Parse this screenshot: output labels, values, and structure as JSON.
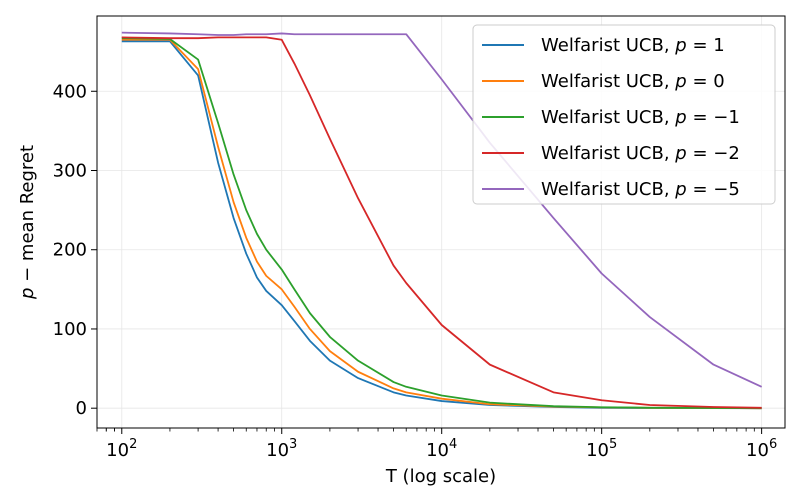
{
  "chart_data": {
    "type": "line",
    "xlabel": "T (log scale)",
    "ylabel": "p − mean Regret",
    "xscale": "log",
    "xlim": [
      70,
      1400000
    ],
    "ylim": [
      -25,
      495
    ],
    "grid": true,
    "legend_position": "top-right",
    "x_ticks": [
      {
        "value": 100,
        "base": "10",
        "exp": "2"
      },
      {
        "value": 1000,
        "base": "10",
        "exp": "3"
      },
      {
        "value": 10000,
        "base": "10",
        "exp": "4"
      },
      {
        "value": 100000,
        "base": "10",
        "exp": "5"
      },
      {
        "value": 1000000,
        "base": "10",
        "exp": "6"
      }
    ],
    "y_ticks": [
      0,
      100,
      200,
      300,
      400
    ],
    "x": [
      100,
      200,
      300,
      400,
      500,
      600,
      700,
      800,
      1000,
      1200,
      1500,
      2000,
      3000,
      5000,
      6000,
      10000,
      20000,
      50000,
      100000,
      200000,
      500000,
      1000000
    ],
    "series": [
      {
        "name_prefix": "Welfarist UCB, ",
        "name_var": "p",
        "name_rhs": " = 1",
        "color": "#1f77b4",
        "values": [
          463,
          463,
          420,
          310,
          240,
          195,
          165,
          148,
          130,
          110,
          85,
          60,
          38,
          20,
          16,
          9,
          4,
          1.5,
          0.5,
          0.2,
          0.1,
          0
        ]
      },
      {
        "name_prefix": "Welfarist UCB, ",
        "name_var": "p",
        "name_rhs": " = 0",
        "color": "#ff7f0e",
        "values": [
          465,
          465,
          428,
          330,
          260,
          215,
          185,
          167,
          150,
          128,
          100,
          72,
          46,
          25,
          20,
          12,
          5,
          2,
          1,
          0.5,
          0.2,
          0
        ]
      },
      {
        "name_prefix": "Welfarist UCB, ",
        "name_var": "p",
        "name_rhs": " = −1",
        "color": "#2ca02c",
        "values": [
          467,
          466,
          440,
          360,
          295,
          250,
          220,
          200,
          175,
          150,
          120,
          90,
          60,
          33,
          27,
          16,
          7,
          2.5,
          1.2,
          0.6,
          0.3,
          0
        ]
      },
      {
        "name_prefix": "Welfarist UCB, ",
        "name_var": "p",
        "name_rhs": " = −2",
        "color": "#d62728",
        "values": [
          468,
          467,
          467,
          468,
          468,
          468,
          468,
          468,
          465,
          435,
          395,
          340,
          265,
          180,
          158,
          105,
          55,
          20,
          10,
          4,
          1.5,
          0.5
        ]
      },
      {
        "name_prefix": "Welfarist UCB, ",
        "name_var": "p",
        "name_rhs": " = −5",
        "color": "#9467bd",
        "values": [
          474,
          473,
          472,
          471,
          471,
          472,
          472,
          472,
          473,
          472,
          472,
          472,
          472,
          472,
          472,
          415,
          335,
          240,
          170,
          115,
          55,
          27
        ]
      }
    ]
  }
}
